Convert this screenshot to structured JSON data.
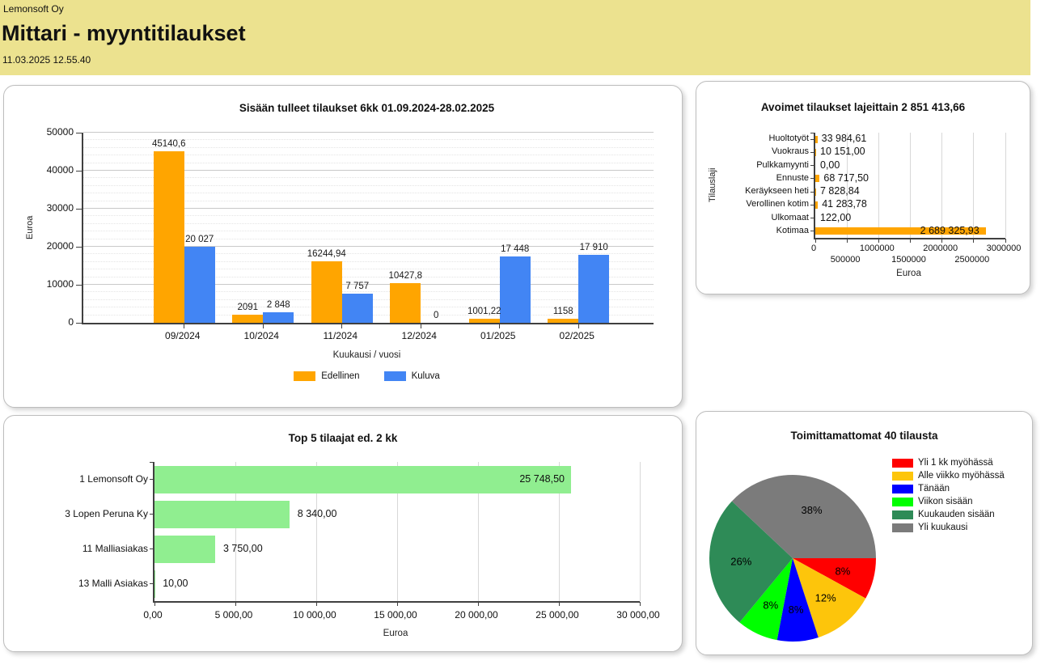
{
  "header": {
    "company": "Lemonsoft Oy",
    "title": "Mittari - myyntitilaukset",
    "timestamp": "11.03.2025 12.55.40",
    "background_color": "#ece28f"
  },
  "chart_data": [
    {
      "id": "incoming-orders",
      "type": "bar",
      "title": "Sisään tulleet tilaukset 6kk 01.09.2024-28.02.2025",
      "xlabel": "Kuukausi / vuosi",
      "ylabel": "Euroa",
      "ylim": [
        0,
        50000
      ],
      "ytick_step": 10000,
      "ytick_labels": [
        "0",
        "10000",
        "20000",
        "30000",
        "40000",
        "50000"
      ],
      "grid": "horizontal",
      "legend_position": "bottom",
      "categories": [
        "09/2024",
        "10/2024",
        "11/2024",
        "12/2024",
        "01/2025",
        "02/2025"
      ],
      "series": [
        {
          "name": "Edellinen",
          "color": "#FFA500",
          "values": [
            45140.6,
            2091,
            16244.94,
            10427.8,
            1001.22,
            1158
          ],
          "labels": [
            "45140,6",
            "2091",
            "16244,94",
            "10427,8",
            "1001,22",
            "1158"
          ]
        },
        {
          "name": "Kuluva",
          "color": "#4285F4",
          "values": [
            20027,
            2848,
            7757,
            0,
            17448,
            17910
          ],
          "labels": [
            "20 027",
            "2 848",
            "7 757",
            "0",
            "17 448",
            "17 910"
          ]
        }
      ]
    },
    {
      "id": "open-orders-by-type",
      "type": "bar-horizontal",
      "title": "Avoimet tilaukset lajeittain 2 851 413,66",
      "total": "2 851 413,66",
      "xlabel": "Euroa",
      "ylabel": "Tilauslaji",
      "xlim": [
        0,
        3000000
      ],
      "xticks": [
        0,
        500000,
        1000000,
        1500000,
        2000000,
        2500000,
        3000000
      ],
      "xtick_labels": [
        "0",
        "500000",
        "1000000",
        "1500000",
        "2000000",
        "2500000",
        "3000000"
      ],
      "bar_color": "#FFA500",
      "categories": [
        "Huoltotyöt",
        "Vuokraus",
        "Pulkkamyynti",
        "Ennuste",
        "Keräykseen heti",
        "Verollinen kotim",
        "Ulkomaat",
        "Kotimaa"
      ],
      "values": [
        33984.61,
        10151.0,
        0,
        68717.5,
        7828.84,
        41283.78,
        122.0,
        2689325.93
      ],
      "value_labels": [
        "33 984,61",
        "10 151,00",
        "0,00",
        "68 717,50",
        "7 828,84",
        "41 283,78",
        "122,00",
        "2 689 325,93"
      ]
    },
    {
      "id": "top5-customers",
      "type": "bar-horizontal",
      "title": "Top 5 tilaajat ed. 2 kk",
      "xlabel": "Euroa",
      "xlim": [
        0,
        30000
      ],
      "xticks": [
        0,
        5000,
        10000,
        15000,
        20000,
        25000,
        30000
      ],
      "xtick_labels": [
        "0,00",
        "5 000,00",
        "10 000,00",
        "15 000,00",
        "20 000,00",
        "25 000,00",
        "30 000,00"
      ],
      "bar_color": "#90EE90",
      "categories": [
        "1 Lemonsoft Oy",
        "3 Lopen Peruna Ky",
        "11 Malliasiakas",
        "13 Malli Asiakas"
      ],
      "values": [
        25748.5,
        8340.0,
        3750.0,
        10.0
      ],
      "value_labels": [
        "25 748,50",
        "8 340,00",
        "3 750,00",
        "10,00"
      ]
    },
    {
      "id": "undelivered-orders",
      "type": "pie",
      "title": "Toimittamattomat 40 tilausta",
      "legend_position": "right",
      "start_angle_deg": 0,
      "direction": "clockwise",
      "slices": [
        {
          "label": "Yli 1 kk myöhässä",
          "pct": 8,
          "pct_label": "8%",
          "color": "#FF0000"
        },
        {
          "label": "Alle viikko myöhässä",
          "pct": 12,
          "pct_label": "12%",
          "color": "#FDC50B"
        },
        {
          "label": "Tänään",
          "pct": 8,
          "pct_label": "8%",
          "color": "#0000FF"
        },
        {
          "label": "Viikon sisään",
          "pct": 8,
          "pct_label": "8%",
          "color": "#00FF00"
        },
        {
          "label": "Kuukauden sisään",
          "pct": 26,
          "pct_label": "26%",
          "color": "#2E8B57"
        },
        {
          "label": "Yli kuukausi",
          "pct": 38,
          "pct_label": "38%",
          "color": "#7B7B7B"
        }
      ]
    }
  ]
}
